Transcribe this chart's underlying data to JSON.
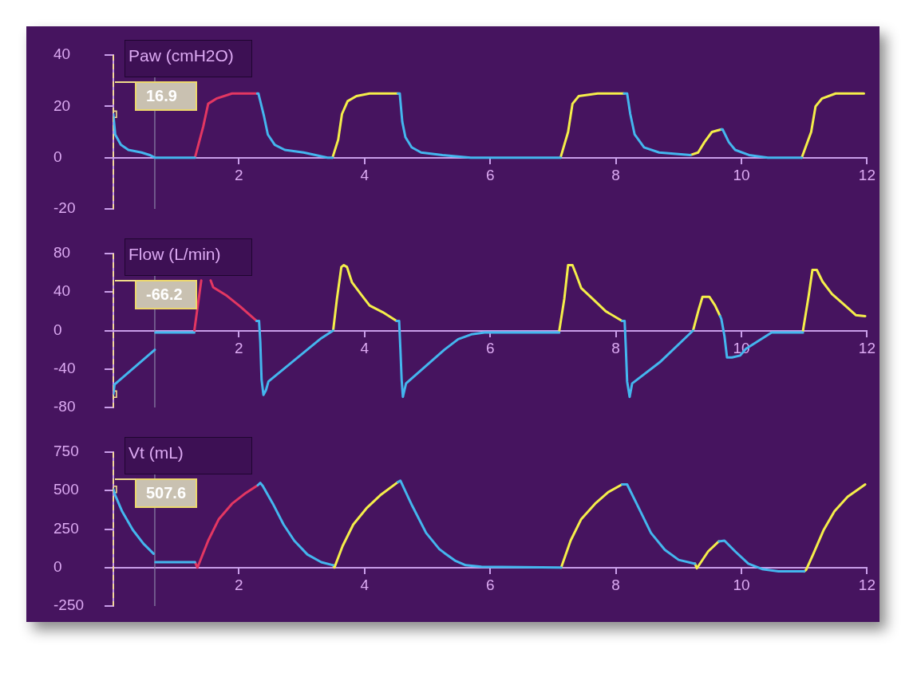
{
  "chart_data": [
    {
      "type": "line",
      "title": "Paw (cmH2O)",
      "xlim": [
        0,
        12
      ],
      "xticks": [
        2,
        4,
        6,
        8,
        10,
        12
      ],
      "ylim": [
        -20,
        40
      ],
      "yticks": [
        -20,
        0,
        20,
        40
      ],
      "series": [
        {
          "color": "#44b6ee",
          "x": [
            0,
            0.03,
            0.12,
            0.24,
            0.45,
            0.58,
            0.66,
            1.3,
            1.8,
            2.29,
            2.31,
            2.4,
            2.46,
            2.57,
            2.73,
            3.03,
            3.41,
            3.49,
            4.0,
            4.53,
            4.56,
            4.6,
            4.65,
            4.75,
            4.9,
            5.24,
            5.69,
            7.12,
            7.6,
            8.13,
            8.18,
            8.23,
            8.3,
            8.45,
            8.69,
            9.19,
            9.45,
            9.68,
            9.7,
            9.8,
            9.9,
            10.12,
            10.42,
            10.96
          ],
          "values": [
            16.9,
            9,
            5,
            3,
            2,
            1,
            0,
            0,
            null,
            25,
            25,
            16,
            9,
            5,
            3,
            2,
            0,
            0,
            null,
            25,
            25,
            14,
            8,
            4,
            2,
            1,
            0,
            0,
            null,
            25,
            25,
            17,
            9,
            4,
            2,
            1,
            null,
            11,
            11,
            6,
            3,
            1,
            0,
            0
          ]
        },
        {
          "color": "#e33762",
          "x": [
            1.3,
            1.43,
            1.51,
            1.64,
            1.89,
            2.29
          ],
          "values": [
            0,
            12,
            21,
            23,
            25,
            25
          ]
        },
        {
          "color": "#f5ee4a",
          "x": [
            3.49,
            3.58,
            3.64,
            3.73,
            3.87,
            4.08,
            4.53,
            5.8,
            7.12,
            7.24,
            7.31,
            7.41,
            7.71,
            8.13,
            8.6,
            9.19,
            9.31,
            9.41,
            9.53,
            9.68,
            10.5,
            10.96,
            11.11,
            11.18,
            11.28,
            11.5,
            11.95
          ],
          "values": [
            0,
            7,
            17,
            22,
            24,
            25,
            25,
            null,
            0,
            10,
            21,
            24,
            25,
            25,
            null,
            1,
            2,
            6,
            10,
            11,
            null,
            0,
            10,
            20,
            23,
            25,
            25
          ]
        },
        {
          "type": "scatter",
          "marker": "square",
          "color": "#f0dc8a",
          "x": [
            0
          ],
          "values": [
            16.9
          ]
        }
      ],
      "ref_lines": [
        {
          "axis": "x",
          "value": 0,
          "color": "#f2d79a",
          "line_style": "dashed"
        },
        {
          "axis": "x",
          "value": 0.66,
          "color": "#8c86a8"
        }
      ],
      "annotations": [
        "16.9"
      ]
    },
    {
      "type": "line",
      "title": "Flow (L/min)",
      "xlim": [
        0,
        12
      ],
      "xticks": [
        2,
        4,
        6,
        8,
        10,
        12
      ],
      "ylim": [
        -80,
        80
      ],
      "yticks": [
        -80,
        -40,
        0,
        40,
        80
      ],
      "series": [
        {
          "color": "#44b6ee",
          "x": [
            0,
            0.02,
            0.66,
            0.665,
            0.67,
            1.29,
            1.8,
            2.28,
            2.32,
            2.34,
            2.36,
            2.39,
            2.43,
            2.47,
            2.88,
            3.31,
            3.5,
            4.0,
            4.51,
            4.55,
            4.57,
            4.59,
            4.61,
            4.66,
            5.27,
            5.49,
            5.7,
            5.91,
            7.1,
            7.6,
            8.1,
            8.14,
            8.16,
            8.18,
            8.22,
            8.26,
            8.7,
            9.23,
            9.45,
            9.66,
            9.68,
            9.73,
            9.77,
            9.85,
            9.98,
            10.07,
            10.24,
            10.48,
            10.98
          ],
          "values": [
            -66.2,
            -56,
            -20,
            null,
            -2,
            -2,
            null,
            10,
            10,
            -12,
            -51,
            -67,
            -62,
            -53,
            -31,
            -8,
            0,
            null,
            10,
            10,
            -19,
            -51,
            -69,
            -55,
            -20,
            -9,
            -4,
            -2,
            -2,
            null,
            10,
            10,
            -19,
            -53,
            -69,
            -55,
            -33,
            0,
            null,
            15,
            12,
            -6,
            -28,
            -28,
            -26,
            -19,
            -12,
            -2,
            -2
          ]
        },
        {
          "color": "#e33762",
          "x": [
            1.29,
            1.4,
            1.47,
            1.55,
            1.59,
            1.81,
            2.02,
            2.28
          ],
          "values": [
            0,
            52,
            null,
            52,
            45,
            36,
            25,
            10
          ]
        },
        {
          "color": "#f5ee4a",
          "x": [
            3.5,
            3.56,
            3.63,
            3.67,
            3.72,
            3.8,
            3.95,
            4.08,
            4.29,
            4.51,
            5.8,
            7.1,
            7.18,
            7.24,
            7.31,
            7.37,
            7.45,
            7.63,
            7.84,
            8.1,
            8.6,
            9.23,
            9.32,
            9.38,
            9.49,
            9.58,
            9.66,
            10.5,
            10.98,
            11.07,
            11.13,
            11.2,
            11.29,
            11.44,
            11.65,
            11.82,
            11.97
          ],
          "values": [
            0,
            33,
            66,
            68,
            66,
            50,
            37,
            26,
            19,
            10,
            null,
            0,
            33,
            68,
            68,
            58,
            44,
            33,
            20,
            10,
            null,
            0,
            22,
            35,
            35,
            26,
            15,
            null,
            0,
            36,
            63,
            63,
            51,
            38,
            26,
            16,
            15
          ]
        },
        {
          "type": "scatter",
          "marker": "square",
          "color": "#f0dc8a",
          "x": [
            0
          ],
          "values": [
            -66.2
          ]
        }
      ],
      "ref_lines": [
        {
          "axis": "x",
          "value": 0,
          "color": "#f2d79a",
          "line_style": "dashed"
        },
        {
          "axis": "x",
          "value": 0.66,
          "color": "#8c86a8"
        }
      ],
      "annotations": [
        "-66.2"
      ]
    },
    {
      "type": "line",
      "title": "Vt (mL)",
      "xlim": [
        0,
        12
      ],
      "xticks": [
        2,
        4,
        6,
        8,
        10,
        12
      ],
      "ylim": [
        -250,
        750
      ],
      "yticks": [
        -250,
        0,
        250,
        500,
        750
      ],
      "series": [
        {
          "color": "#44b6ee",
          "x": [
            0,
            0.03,
            0.14,
            0.31,
            0.48,
            0.64,
            0.655,
            0.67,
            1.3,
            1.8,
            2.3,
            2.34,
            2.38,
            2.54,
            2.71,
            2.88,
            3.09,
            3.31,
            3.5,
            4.0,
            4.53,
            4.57,
            4.76,
            4.98,
            5.19,
            5.27,
            5.44,
            5.61,
            5.86,
            7.13,
            7.6,
            8.1,
            8.18,
            8.35,
            8.56,
            8.78,
            9.0,
            9.26,
            9.45,
            9.64,
            9.73,
            9.9,
            10.11,
            10.33,
            10.59,
            11.0
          ],
          "values": [
            507.6,
            470,
            365,
            245,
            155,
            90,
            null,
            35,
            35,
            null,
            535,
            550,
            530,
            415,
            280,
            175,
            85,
            35,
            15,
            null,
            555,
            565,
            400,
            225,
            120,
            95,
            45,
            15,
            5,
            0,
            null,
            540,
            540,
            400,
            225,
            115,
            50,
            25,
            null,
            170,
            175,
            105,
            25,
            -10,
            -25,
            -25
          ]
        },
        {
          "color": "#e33762",
          "x": [
            1.3,
            1.34,
            1.51,
            1.68,
            1.89,
            2.11,
            2.3
          ],
          "values": [
            35,
            0,
            175,
            315,
            415,
            485,
            535
          ]
        },
        {
          "color": "#f5ee4a",
          "x": [
            3.5,
            3.52,
            3.65,
            3.82,
            4.03,
            4.25,
            4.53,
            5.8,
            7.13,
            7.28,
            7.45,
            7.67,
            7.88,
            8.1,
            8.6,
            9.26,
            9.29,
            9.47,
            9.64,
            10.5,
            11.0,
            11.03,
            11.14,
            11.31,
            11.48,
            11.69,
            11.97
          ],
          "values": [
            15,
            0,
            140,
            280,
            385,
            470,
            555,
            null,
            0,
            175,
            315,
            415,
            490,
            540,
            null,
            25,
            -5,
            105,
            170,
            null,
            -25,
            -15,
            85,
            245,
            365,
            460,
            540
          ]
        },
        {
          "type": "scatter",
          "marker": "square",
          "color": "#f0dc8a",
          "x": [
            0
          ],
          "values": [
            507.6
          ]
        }
      ],
      "ref_lines": [
        {
          "axis": "x",
          "value": 0,
          "color": "#f2d79a",
          "line_style": "dashed"
        },
        {
          "axis": "x",
          "value": 0.66,
          "color": "#8c86a8"
        }
      ],
      "annotations": [
        "507.6"
      ]
    }
  ]
}
